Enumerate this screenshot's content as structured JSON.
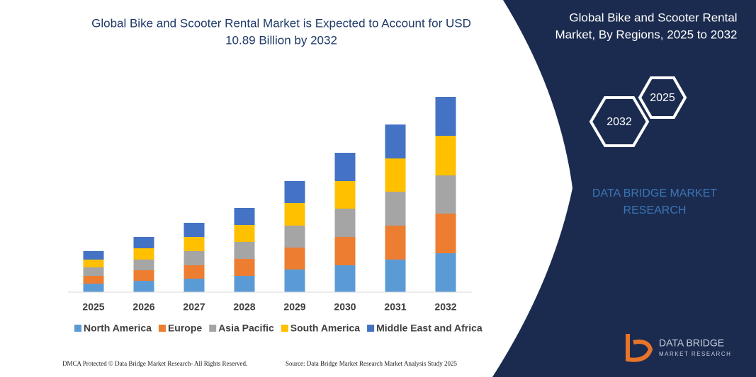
{
  "chart_data": {
    "type": "bar",
    "stacked": true,
    "title": "Global Bike and Scooter Rental Market is Expected to Account for USD 10.89 Billion by 2032",
    "categories": [
      "2025",
      "2026",
      "2027",
      "2028",
      "2029",
      "2030",
      "2031",
      "2032"
    ],
    "series": [
      {
        "name": "North America",
        "color": "#5b9bd5",
        "values": [
          12,
          16,
          19,
          23,
          32,
          38,
          46,
          55
        ]
      },
      {
        "name": "Europe",
        "color": "#ed7d31",
        "values": [
          11,
          15,
          19,
          24,
          31,
          40,
          48,
          56
        ]
      },
      {
        "name": "Asia Pacific",
        "color": "#a5a5a5",
        "values": [
          12,
          15,
          20,
          24,
          31,
          40,
          48,
          54
        ]
      },
      {
        "name": "South America",
        "color": "#ffc000",
        "values": [
          11,
          16,
          20,
          24,
          32,
          39,
          47,
          56
        ]
      },
      {
        "name": "Middle East and Africa",
        "color": "#4472c4",
        "values": [
          12,
          16,
          20,
          24,
          31,
          40,
          48,
          55
        ]
      }
    ],
    "ylim": [
      0,
      300
    ]
  },
  "panel": {
    "title_lines": [
      "Global Bike and Scooter Rental",
      "Market, By Regions, 2025 to 2032"
    ],
    "hex_labels": [
      "2025",
      "2032"
    ],
    "brand_lines": [
      "DATA BRIDGE MARKET",
      "RESEARCH"
    ]
  },
  "logo": {
    "name": "DATA BRIDGE",
    "tagline": "MARKET RESEARCH"
  },
  "footer": {
    "left": "DMCA Protected © Data Bridge Market Research-  All Rights Reserved.",
    "right": "Source: Data Bridge Market Research  Market Analysis Study 2025"
  }
}
